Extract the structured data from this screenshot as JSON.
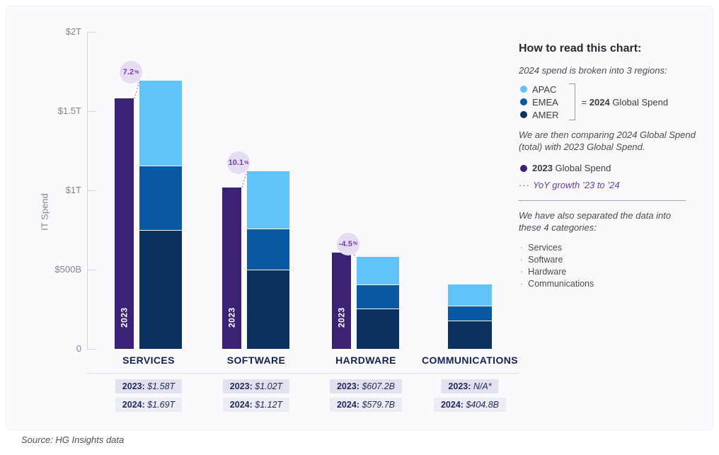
{
  "page": {
    "source": "Source: HG Insights data"
  },
  "panel": {
    "title": "How to read this chart:",
    "intro": "2024 spend is broken into 3 regions:",
    "regions": [
      {
        "name": "APAC",
        "color": "#62C3F8"
      },
      {
        "name": "EMEA",
        "color": "#0859A2"
      },
      {
        "name": "AMER",
        "color": "#0B3161"
      }
    ],
    "equals_prefix": "= ",
    "equals_bold": "2024",
    "equals_rest": " Global Spend",
    "compare_text": "We are then comparing 2024 Global Spend (total) with 2023 Global Spend.",
    "legend_2023_bold": "2023",
    "legend_2023_rest": " Global Spend",
    "yoy_dots": "···",
    "yoy_label": "YoY growth ’23 to ’24",
    "categories_intro": "We have also separated the data into these 4 categories:",
    "bullet": "·",
    "category_list": [
      "Services",
      "Software",
      "Hardware",
      "Communications"
    ]
  },
  "chart_data": {
    "type": "bar",
    "subtype": "2023 total bar vs 2024 bar stacked by region, per category",
    "ylabel": "IT Spend",
    "unit": "$B",
    "ylim": [
      0,
      2000
    ],
    "grid": false,
    "y_ticks": [
      {
        "label": "$2T",
        "value": 2000
      },
      {
        "label": "$1.5T",
        "value": 1500
      },
      {
        "label": "$1T",
        "value": 1000
      },
      {
        "label": "$500B",
        "value": 500
      },
      {
        "label": "0",
        "value": 0
      }
    ],
    "colors": {
      "spend_2023": "#3C2274",
      "APAC": "#62C3F8",
      "EMEA": "#0859A2",
      "AMER": "#0B3161",
      "badge_bg": "#E7DDF2",
      "badge_text": "#7440A8",
      "dotted_line": "#9578C4"
    },
    "bar_inner_label_2023": "2023",
    "row_label_2023": "2023:",
    "row_label_2024": "2024:",
    "categories": [
      {
        "label": "SERVICES",
        "spend_2023_b": 1580,
        "spend_2024_b": 1690,
        "regions_2024_b": {
          "APAC": 540,
          "EMEA": 405,
          "AMER": 745
        },
        "yoy_growth_pct": "7.2%",
        "table_2023": "$1.58T",
        "table_2024": "$1.69T"
      },
      {
        "label": "SOFTWARE",
        "spend_2023_b": 1020,
        "spend_2024_b": 1120,
        "regions_2024_b": {
          "APAC": 365,
          "EMEA": 260,
          "AMER": 495
        },
        "yoy_growth_pct": "10.1%",
        "table_2023": "$1.02T",
        "table_2024": "$1.12T"
      },
      {
        "label": "HARDWARE",
        "spend_2023_b": 607.2,
        "spend_2024_b": 579.7,
        "regions_2024_b": {
          "APAC": 180,
          "EMEA": 148,
          "AMER": 251.7
        },
        "yoy_growth_pct": "-4.5%",
        "table_2023": "$607.2B",
        "table_2024": "$579.7B"
      },
      {
        "label": "COMMUNICATIONS",
        "spend_2023_b": null,
        "spend_2024_b": 404.8,
        "regions_2024_b": {
          "APAC": 135,
          "EMEA": 95,
          "AMER": 174.8
        },
        "yoy_growth_pct": null,
        "table_2023": "N/A*",
        "table_2024": "$404.8B"
      }
    ]
  }
}
